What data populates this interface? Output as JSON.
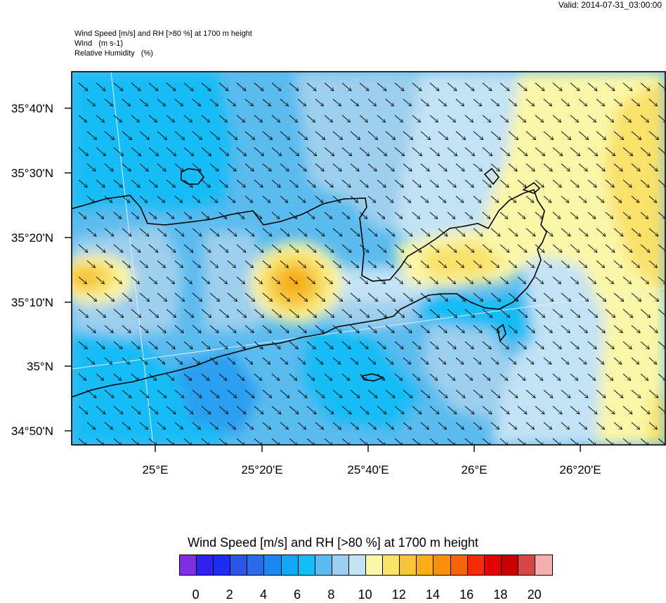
{
  "valid_label": "Valid: 2014-07-31_03:00:00",
  "title_lines": [
    "Wind Speed [m/s] and RH [>80 %] at 1700 m height",
    "Wind   (m s-1)",
    "Relative Humidity   (%)"
  ],
  "lat_labels": [
    "35°40'N",
    "35°30'N",
    "35°20'N",
    "35°10'N",
    "35°N",
    "34°50'N"
  ],
  "lon_labels": [
    "25°E",
    "25°20'E",
    "25°40'E",
    "26°E",
    "26°20'E"
  ],
  "legend": {
    "title": "Wind Speed [m/s] and RH [>80 %] at 1700 m height",
    "colors": [
      "#7f2ee3",
      "#2f22ee",
      "#1d2cf0",
      "#2b55e4",
      "#2b6be8",
      "#1c87f2",
      "#12a8f4",
      "#14bcf6",
      "#5abbef",
      "#9dcfee",
      "#c2e2f5",
      "#fbf7a8",
      "#f9e16a",
      "#f7c53a",
      "#f8ac16",
      "#f88e0c",
      "#f8630a",
      "#f42a08",
      "#e40007",
      "#c70101",
      "#d84545",
      "#f5adad"
    ],
    "ticks": [
      "0",
      "2",
      "4",
      "6",
      "8",
      "10",
      "12",
      "14",
      "16",
      "18",
      "20"
    ]
  }
}
